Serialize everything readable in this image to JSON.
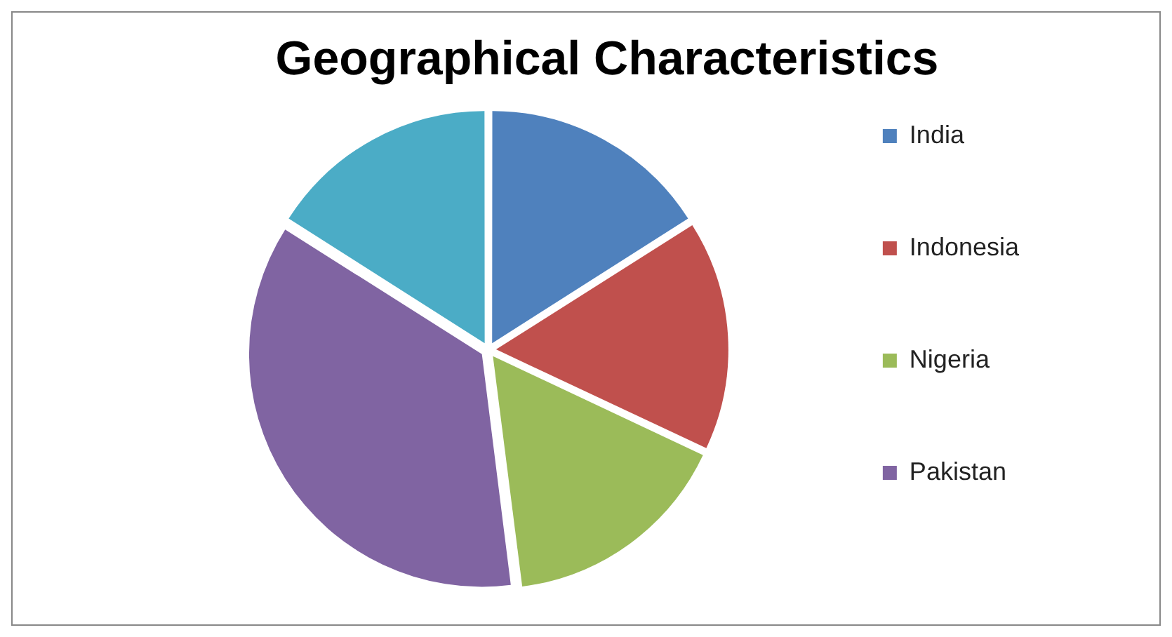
{
  "chart_data": {
    "type": "pie",
    "title": "Geographical Characteristics",
    "categories": [
      "India",
      "Indonesia",
      "Nigeria",
      "Pakistan",
      null
    ],
    "values": [
      16,
      16,
      16,
      36,
      16
    ],
    "colors": [
      "#4f81bd",
      "#c0504d",
      "#9bbb59",
      "#8064a2",
      "#4bacc6"
    ],
    "legend": "right"
  }
}
